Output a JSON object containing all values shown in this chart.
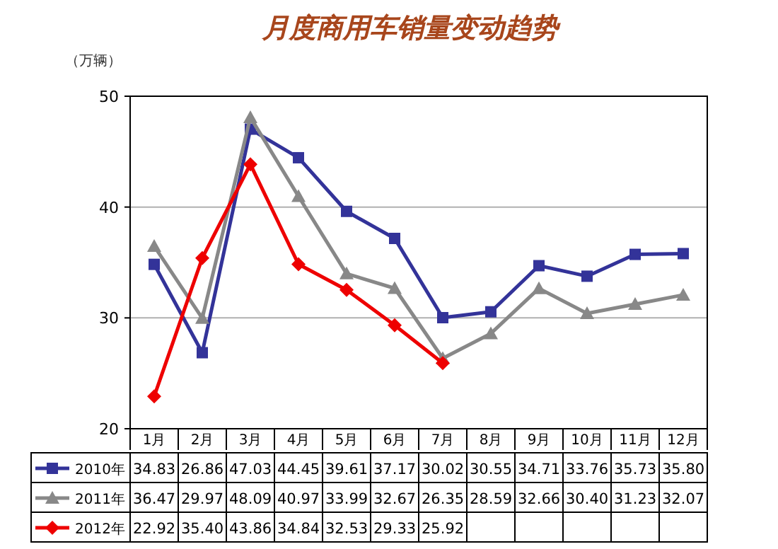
{
  "chart_data": {
    "type": "line",
    "title": "月度商用车销量变动趋势",
    "ylabel": "（万辆）",
    "categories": [
      "1月",
      "2月",
      "3月",
      "4月",
      "5月",
      "6月",
      "7月",
      "8月",
      "9月",
      "10月",
      "11月",
      "12月"
    ],
    "series": [
      {
        "name": "2010年",
        "color": "#333399",
        "marker": "square",
        "values": [
          34.83,
          26.86,
          47.03,
          44.45,
          39.61,
          37.17,
          30.02,
          30.55,
          34.71,
          33.76,
          35.73,
          35.8
        ],
        "value_labels": [
          "34.83",
          "26.86",
          "47.03",
          "44.45",
          "39.61",
          "37.17",
          "30.02",
          "30.55",
          "34.71",
          "33.76",
          "35.73",
          "35.80"
        ]
      },
      {
        "name": "2011年",
        "color": "#888888",
        "marker": "triangle",
        "values": [
          36.47,
          29.97,
          48.09,
          40.97,
          33.99,
          32.67,
          26.35,
          28.59,
          32.66,
          30.4,
          31.23,
          32.07
        ],
        "value_labels": [
          "36.47",
          "29.97",
          "48.09",
          "40.97",
          "33.99",
          "32.67",
          "26.35",
          "28.59",
          "32.66",
          "30.40",
          "31.23",
          "32.07"
        ]
      },
      {
        "name": "2012年",
        "color": "#ee0000",
        "marker": "diamond",
        "values": [
          22.92,
          35.4,
          43.86,
          34.84,
          32.53,
          29.33,
          25.92,
          null,
          null,
          null,
          null,
          null
        ],
        "value_labels": [
          "22.92",
          "35.40",
          "43.86",
          "34.84",
          "32.53",
          "29.33",
          "25.92",
          null,
          null,
          null,
          null,
          null
        ]
      }
    ],
    "ylim": [
      20,
      50
    ],
    "yticks": [
      20,
      30,
      40,
      50
    ],
    "grid": "y",
    "legend": "bottom"
  }
}
